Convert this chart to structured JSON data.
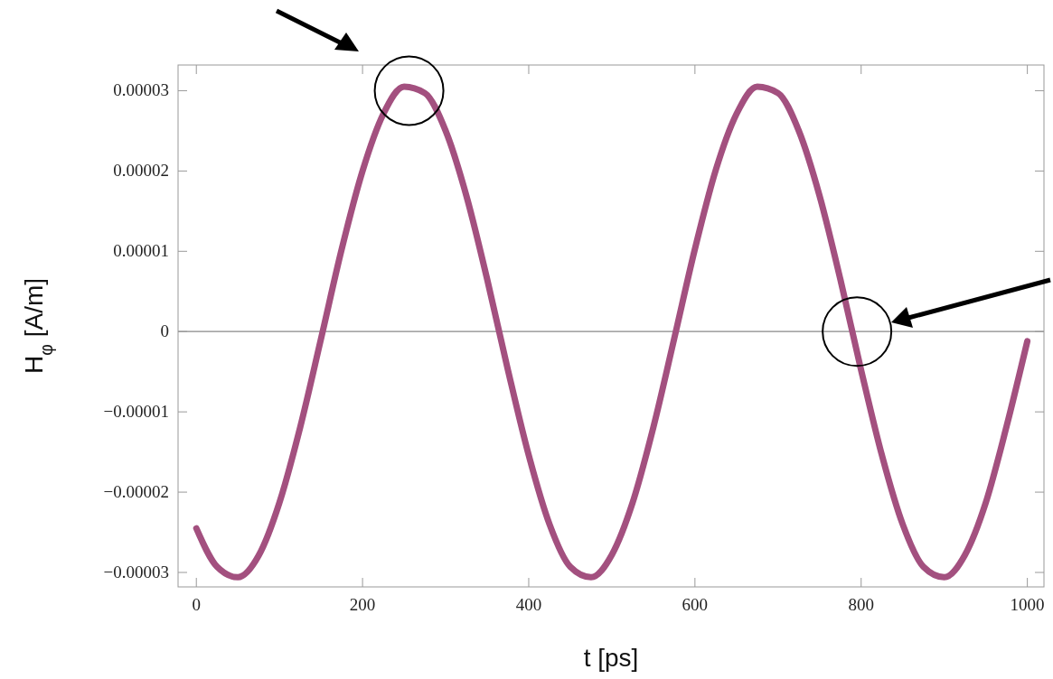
{
  "chart_data": {
    "type": "line",
    "xlabel": "t [ps]",
    "ylabel": "H$_{φ}$ [A/m]",
    "x": [
      0,
      25,
      50,
      75,
      100,
      125,
      150,
      175,
      200,
      225,
      250,
      275,
      300,
      325,
      350,
      375,
      400,
      425,
      450,
      475,
      500,
      525,
      550,
      575,
      600,
      625,
      650,
      675,
      700,
      725,
      750,
      775,
      800,
      825,
      850,
      875,
      900,
      925,
      950,
      975,
      1000
    ],
    "series": [
      {
        "color": "#a3507f",
        "values": [
          -2.45e-05,
          -2.93e-05,
          -3.06e-05,
          -2.79e-05,
          -2.13e-05,
          -1.19e-05,
          -9e-07,
          1.03e-05,
          2e-05,
          2.71e-05,
          3.05e-05,
          2.97e-05,
          2.5e-05,
          1.69e-05,
          6.5e-06,
          -4.8e-06,
          -1.54e-05,
          -2.4e-05,
          -2.93e-05,
          -3.06e-05,
          -2.78e-05,
          -2.13e-05,
          -1.19e-05,
          -9e-07,
          1.03e-05,
          2.01e-05,
          2.71e-05,
          3.05e-05,
          2.97e-05,
          2.5e-05,
          1.69e-05,
          6.5e-06,
          -4.8e-06,
          -1.54e-05,
          -2.4e-05,
          -2.93e-05,
          -3.06e-05,
          -2.78e-05,
          -2.13e-05,
          -1.18e-05,
          -1.2e-06
        ]
      }
    ],
    "xlim": [
      -22,
      1020
    ],
    "ylim": [
      -3.18e-05,
      3.32e-05
    ],
    "xticks": [
      0,
      200,
      400,
      600,
      800,
      1000
    ],
    "yticks": [
      {
        "value": -3e-05,
        "label": "−0.00003"
      },
      {
        "value": -2e-05,
        "label": "−0.00002"
      },
      {
        "value": -1e-05,
        "label": "−0.00001"
      },
      0,
      {
        "value": 1e-05,
        "label": "0.00001"
      },
      {
        "value": 2e-05,
        "label": "0.00002"
      },
      {
        "value": 3e-05,
        "label": "0.00003"
      }
    ],
    "ref_lines": [
      {
        "axis": "y",
        "value": 0,
        "color": "#888888"
      }
    ],
    "marker": "none",
    "line_style": "solid",
    "grid": false
  }
}
